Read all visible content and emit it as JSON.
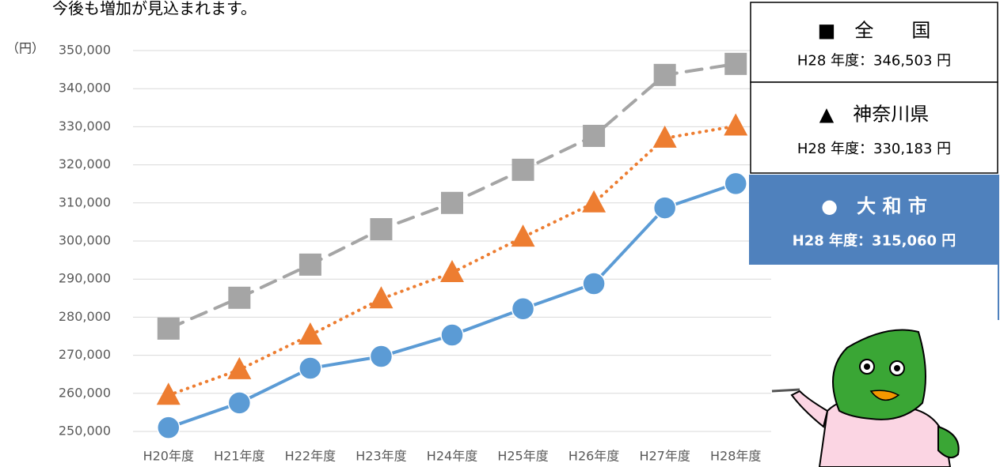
{
  "chart_data": {
    "type": "line",
    "caption": "今後も増加が見込まれます。",
    "y_unit": "（円）",
    "categories": [
      "H20年度",
      "H21年度",
      "H22年度",
      "H23年度",
      "H24年度",
      "H25年度",
      "H26年度",
      "H27年度",
      "H28年度"
    ],
    "ylim": [
      250000,
      350000
    ],
    "yticks": [
      {
        "value": 250000,
        "label": "250,000"
      },
      {
        "value": 260000,
        "label": "260,000"
      },
      {
        "value": 270000,
        "label": "270,000"
      },
      {
        "value": 280000,
        "label": "280,000"
      },
      {
        "value": 290000,
        "label": "290,000"
      },
      {
        "value": 300000,
        "label": "300,000"
      },
      {
        "value": 310000,
        "label": "310,000"
      },
      {
        "value": 320000,
        "label": "320,000"
      },
      {
        "value": 330000,
        "label": "330,000"
      },
      {
        "value": 340000,
        "label": "340,000"
      },
      {
        "value": 350000,
        "label": "350,000"
      }
    ],
    "grid": true,
    "series": [
      {
        "name": "■　全　　国",
        "color": "#a5a5a5",
        "marker": "square",
        "dash": "dashed",
        "values": [
          277000,
          285100,
          293800,
          303100,
          310000,
          318700,
          327600,
          343600,
          346503
        ],
        "value_labels": [
          null,
          null,
          null,
          null,
          null,
          null,
          null,
          null,
          "H28 年度：346,503 円"
        ]
      },
      {
        "name": "▲　神奈川県",
        "color": "#ed7d31",
        "marker": "triangle",
        "dash": "dotted",
        "values": [
          259500,
          266200,
          275300,
          284800,
          291700,
          301000,
          310000,
          327000,
          330183
        ],
        "value_labels": [
          null,
          null,
          null,
          null,
          null,
          null,
          null,
          null,
          "H28 年度：330,183 円"
        ]
      },
      {
        "name": "●　大 和 市",
        "color": "#5b9bd5",
        "marker": "circle",
        "dash": "solid",
        "values": [
          251000,
          257500,
          266600,
          269700,
          275300,
          282200,
          288800,
          308700,
          315060
        ],
        "value_labels": [
          null,
          null,
          null,
          null,
          null,
          null,
          null,
          null,
          "H28 年度：315,060 円"
        ]
      }
    ]
  }
}
